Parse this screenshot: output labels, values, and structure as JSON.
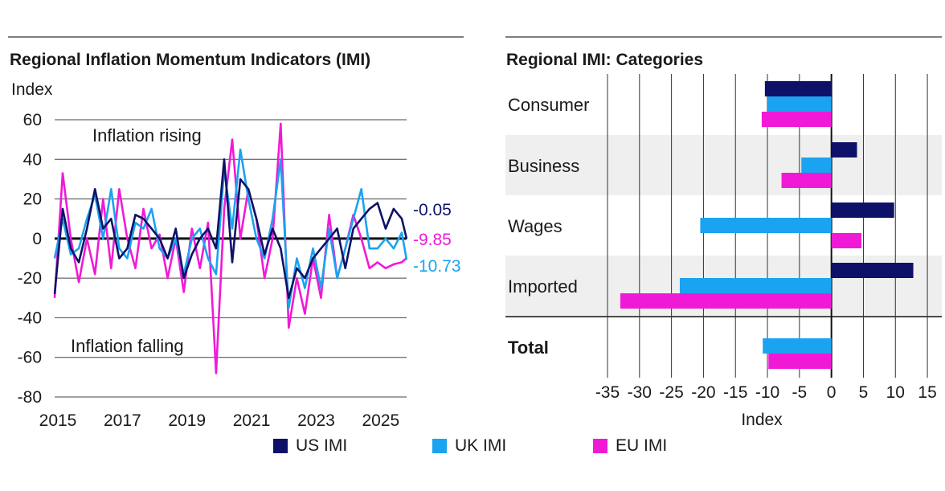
{
  "chart_data": [
    {
      "type": "line",
      "title": "Regional Inflation Momentum Indicators (IMI)",
      "ylabel": "Index",
      "ylim": [
        -80,
        60
      ],
      "yticks": [
        "60",
        "40",
        "20",
        "0",
        "-20",
        "-40",
        "-60",
        "-80"
      ],
      "xticks": [
        "2015",
        "2017",
        "2019",
        "2021",
        "2023",
        "2025"
      ],
      "xlim": [
        2015,
        2025.9
      ],
      "annotations": [
        "Inflation rising",
        "Inflation falling"
      ],
      "end_labels": [
        "-0.05",
        "-9.85",
        "-10.73"
      ],
      "series": [
        {
          "name": "US IMI",
          "color": "#0d1268",
          "x": [
            2015.0,
            2015.25,
            2015.5,
            2015.75,
            2016.0,
            2016.25,
            2016.5,
            2016.75,
            2017.0,
            2017.25,
            2017.5,
            2017.75,
            2018.0,
            2018.25,
            2018.5,
            2018.75,
            2019.0,
            2019.25,
            2019.5,
            2019.75,
            2020.0,
            2020.25,
            2020.5,
            2020.75,
            2021.0,
            2021.25,
            2021.5,
            2021.75,
            2022.0,
            2022.25,
            2022.5,
            2022.75,
            2023.0,
            2023.25,
            2023.5,
            2023.75,
            2024.0,
            2024.25,
            2024.5,
            2024.75,
            2025.0,
            2025.25,
            2025.5,
            2025.75,
            2025.9
          ],
          "values": [
            -28,
            15,
            -5,
            -12,
            5,
            25,
            5,
            10,
            -10,
            -5,
            12,
            10,
            5,
            0,
            -10,
            5,
            -20,
            -8,
            0,
            5,
            -5,
            40,
            -12,
            30,
            25,
            10,
            -8,
            5,
            -5,
            -30,
            -15,
            -20,
            -10,
            -5,
            0,
            5,
            -15,
            5,
            10,
            15,
            18,
            5,
            15,
            10,
            -0.05
          ]
        },
        {
          "name": "UK IMI",
          "color": "#1aa3f0",
          "x": [
            2015.0,
            2015.25,
            2015.5,
            2015.75,
            2016.0,
            2016.25,
            2016.5,
            2016.75,
            2017.0,
            2017.25,
            2017.5,
            2017.75,
            2018.0,
            2018.25,
            2018.5,
            2018.75,
            2019.0,
            2019.25,
            2019.5,
            2019.75,
            2020.0,
            2020.25,
            2020.5,
            2020.75,
            2021.0,
            2021.25,
            2021.5,
            2021.75,
            2022.0,
            2022.25,
            2022.5,
            2022.75,
            2023.0,
            2023.25,
            2023.5,
            2023.75,
            2024.0,
            2024.25,
            2024.5,
            2024.75,
            2025.0,
            2025.25,
            2025.5,
            2025.75,
            2025.9
          ],
          "values": [
            -10,
            10,
            -8,
            -5,
            10,
            22,
            0,
            25,
            -5,
            -10,
            8,
            5,
            15,
            -5,
            -10,
            0,
            -18,
            0,
            5,
            -10,
            -18,
            35,
            5,
            45,
            20,
            0,
            -10,
            10,
            40,
            -35,
            -10,
            -25,
            -5,
            -25,
            5,
            -20,
            -5,
            10,
            25,
            -5,
            -5,
            0,
            -5,
            3,
            -10.73
          ]
        },
        {
          "name": "EU IMI",
          "color": "#f01ad6",
          "x": [
            2015.0,
            2015.25,
            2015.5,
            2015.75,
            2016.0,
            2016.25,
            2016.5,
            2016.75,
            2017.0,
            2017.25,
            2017.5,
            2017.75,
            2018.0,
            2018.25,
            2018.5,
            2018.75,
            2019.0,
            2019.25,
            2019.5,
            2019.75,
            2020.0,
            2020.25,
            2020.5,
            2020.75,
            2021.0,
            2021.25,
            2021.5,
            2021.75,
            2022.0,
            2022.25,
            2022.5,
            2022.75,
            2023.0,
            2023.25,
            2023.5,
            2023.75,
            2024.0,
            2024.25,
            2024.5,
            2024.75,
            2025.0,
            2025.25,
            2025.5,
            2025.75,
            2025.9
          ],
          "values": [
            -30,
            33,
            0,
            -22,
            0,
            -18,
            20,
            -15,
            25,
            0,
            -15,
            15,
            -5,
            2,
            -20,
            0,
            -27,
            5,
            -15,
            8,
            -68,
            15,
            50,
            0,
            25,
            10,
            -20,
            0,
            58,
            -45,
            -20,
            -38,
            -10,
            -30,
            12,
            -20,
            -5,
            12,
            0,
            -15,
            -12,
            -15,
            -13,
            -12,
            -9.85
          ]
        }
      ]
    },
    {
      "type": "bar",
      "orientation": "horizontal",
      "title": "Regional IMI: Categories",
      "xlabel": "Index",
      "xlim": [
        -35,
        17
      ],
      "xticks": [
        "-35",
        "-30",
        "-25",
        "-20",
        "-15",
        "-10",
        "-5",
        "0",
        "5",
        "10",
        "15"
      ],
      "categories": [
        "Consumer",
        "Business",
        "Wages",
        "Imported",
        "Total"
      ],
      "series": [
        {
          "name": "US IMI",
          "color": "#0d1268",
          "values": [
            -10.4,
            4.0,
            9.8,
            12.8,
            -0.05
          ]
        },
        {
          "name": "UK IMI",
          "color": "#1aa3f0",
          "values": [
            -10.0,
            -4.7,
            -20.5,
            -23.7,
            -10.73
          ]
        },
        {
          "name": "EU IMI",
          "color": "#f01ad6",
          "values": [
            -10.9,
            -7.8,
            4.7,
            -33.0,
            -9.85
          ]
        }
      ]
    }
  ],
  "legend": [
    {
      "label": "US IMI",
      "color": "#0d1268"
    },
    {
      "label": "UK IMI",
      "color": "#1aa3f0"
    },
    {
      "label": "EU IMI",
      "color": "#f01ad6"
    }
  ]
}
